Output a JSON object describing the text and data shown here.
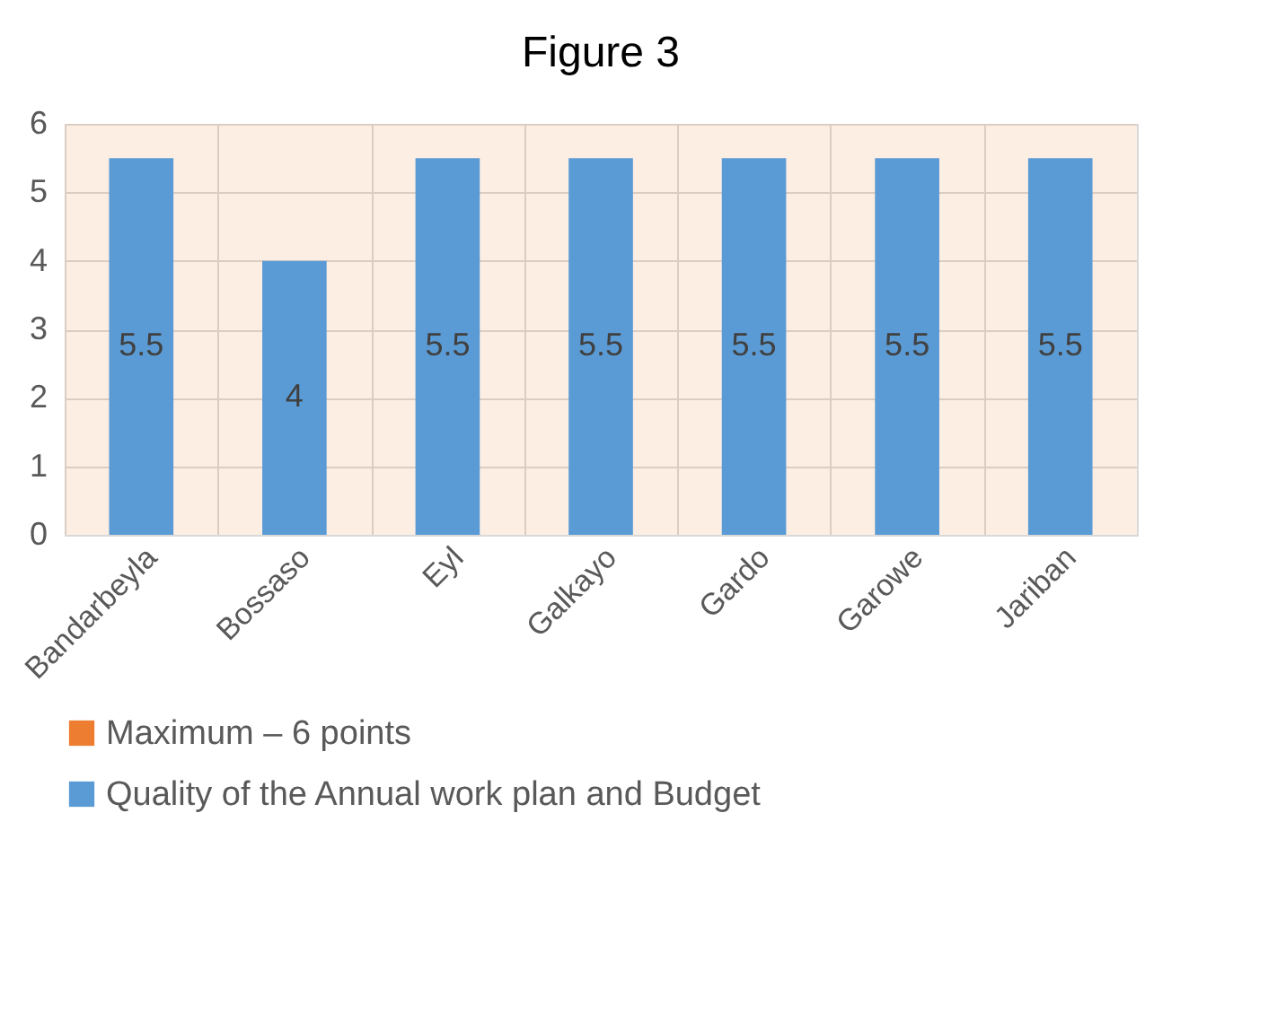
{
  "chart_data": {
    "type": "bar",
    "title": "Figure 3",
    "categories": [
      "Bandarbeyla",
      "Bossaso",
      "Eyl",
      "Galkayo",
      "Gardo",
      "Garowe",
      "Jariban"
    ],
    "series": [
      {
        "name": "Quality of the Annual work plan and Budget",
        "color": "#5b9bd5",
        "values": [
          5.5,
          4,
          5.5,
          5.5,
          5.5,
          5.5,
          5.5
        ],
        "value_labels": [
          "5.5",
          "4",
          "5.5",
          "5.5",
          "5.5",
          "5.5",
          "5.5"
        ]
      }
    ],
    "bands": [
      {
        "axis": "y",
        "from": 0,
        "to": 6,
        "label": "Maximum – 6 points",
        "color": "#ed7d31"
      }
    ],
    "ylim": [
      0,
      6
    ],
    "yticks": [
      0,
      1,
      2,
      3,
      4,
      5,
      6
    ],
    "grid": true,
    "legend": "bottom"
  }
}
